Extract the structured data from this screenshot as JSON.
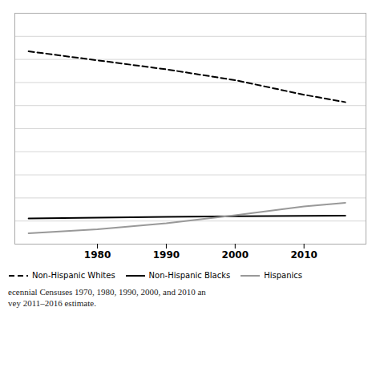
{
  "chart_data": {
    "type": "line",
    "x": [
      1970,
      1980,
      1990,
      2000,
      2010,
      2016
    ],
    "series": [
      {
        "name": "Non-Hispanic Whites",
        "color": "#000000",
        "line_style": "dashed",
        "values": [
          83.5,
          79.6,
          75.7,
          71.0,
          64.7,
          61.5
        ]
      },
      {
        "name": "Non-Hispanic Blacks",
        "color": "#000000",
        "line_style": "solid",
        "values": [
          11.1,
          11.5,
          11.8,
          12.1,
          12.2,
          12.3
        ]
      },
      {
        "name": "Hispanics",
        "color": "#999999",
        "line_style": "solid",
        "values": [
          4.7,
          6.4,
          9.0,
          12.5,
          16.3,
          17.9
        ]
      }
    ],
    "annotations": [
      "ecennial Censuses 1970, 1980, 1990, 2000, and 2010 an",
      "vey 2011–2016 estimate."
    ],
    "xlim": [
      1968,
      2019
    ],
    "ylim": [
      0,
      100
    ],
    "xticks": [
      1980,
      1990,
      2000,
      2010
    ],
    "yticks": [
      10,
      20,
      30,
      40,
      50,
      60,
      70,
      80,
      90,
      100
    ],
    "grid": true,
    "legend": "bottom",
    "tick_labels": "x"
  }
}
